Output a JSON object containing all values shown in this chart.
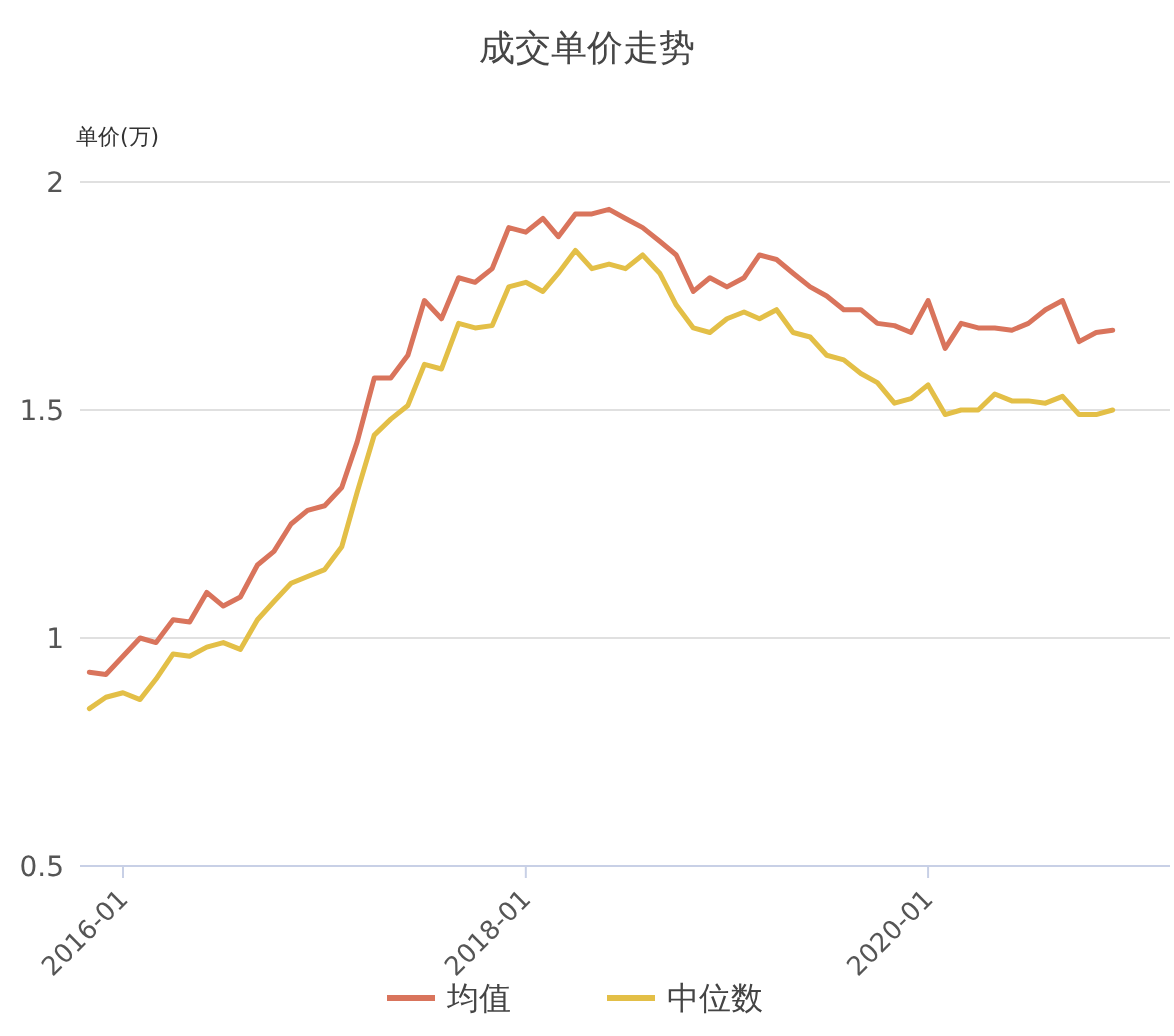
{
  "chart_data": {
    "type": "line",
    "title": "成交单价走势",
    "ylabel": "单价(万)",
    "x": [
      "2015-11",
      "2015-12",
      "2016-01",
      "2016-02",
      "2016-03",
      "2016-04",
      "2016-05",
      "2016-06",
      "2016-07",
      "2016-08",
      "2016-09",
      "2016-10",
      "2016-11",
      "2016-12",
      "2017-01",
      "2017-02",
      "2017-03",
      "2017-04",
      "2017-05",
      "2017-06",
      "2017-07",
      "2017-08",
      "2017-09",
      "2017-10",
      "2017-11",
      "2017-12",
      "2018-01",
      "2018-02",
      "2018-03",
      "2018-04",
      "2018-05",
      "2018-06",
      "2018-07",
      "2018-08",
      "2018-09",
      "2018-10",
      "2018-11",
      "2018-12",
      "2019-01",
      "2019-02",
      "2019-03",
      "2019-04",
      "2019-05",
      "2019-06",
      "2019-07",
      "2019-08",
      "2019-09",
      "2019-10",
      "2019-11",
      "2019-12",
      "2020-01",
      "2020-02",
      "2020-03",
      "2020-04",
      "2020-05",
      "2020-06",
      "2020-07",
      "2020-08",
      "2020-09",
      "2020-10",
      "2020-11",
      "2020-12"
    ],
    "series": [
      {
        "name": "均值",
        "color": "#d9745c",
        "values": [
          0.925,
          0.92,
          0.96,
          1.0,
          0.99,
          1.04,
          1.035,
          1.1,
          1.07,
          1.09,
          1.16,
          1.19,
          1.25,
          1.28,
          1.29,
          1.33,
          1.43,
          1.57,
          1.57,
          1.62,
          1.74,
          1.7,
          1.79,
          1.78,
          1.81,
          1.9,
          1.89,
          1.92,
          1.88,
          1.93,
          1.93,
          1.94,
          1.92,
          1.9,
          1.87,
          1.84,
          1.76,
          1.79,
          1.77,
          1.79,
          1.84,
          1.83,
          1.8,
          1.77,
          1.75,
          1.72,
          1.72,
          1.69,
          1.685,
          1.67,
          1.74,
          1.635,
          1.69,
          1.68,
          1.68,
          1.675,
          1.69,
          1.72,
          1.74,
          1.65,
          1.67,
          1.675
        ]
      },
      {
        "name": "中位数",
        "color": "#e3bf47",
        "values": [
          0.845,
          0.87,
          0.88,
          0.865,
          0.91,
          0.965,
          0.96,
          0.98,
          0.99,
          0.975,
          1.04,
          1.08,
          1.12,
          1.135,
          1.15,
          1.2,
          1.32,
          1.445,
          1.48,
          1.51,
          1.6,
          1.59,
          1.69,
          1.68,
          1.685,
          1.77,
          1.78,
          1.76,
          1.8,
          1.85,
          1.81,
          1.82,
          1.81,
          1.84,
          1.8,
          1.73,
          1.68,
          1.67,
          1.7,
          1.715,
          1.7,
          1.72,
          1.67,
          1.66,
          1.62,
          1.61,
          1.58,
          1.56,
          1.515,
          1.525,
          1.555,
          1.49,
          1.5,
          1.5,
          1.535,
          1.52,
          1.52,
          1.515,
          1.53,
          1.49,
          1.49,
          1.5
        ]
      }
    ],
    "xlim": [
      "2015-10-15",
      "2021-03-15"
    ],
    "xticks": [
      "2016-01",
      "2018-01",
      "2020-01"
    ],
    "ylim": [
      0.5,
      2
    ],
    "yticks": [
      0.5,
      1,
      1.5,
      2
    ],
    "grid": "y",
    "legend": "bottom",
    "line_style": "solid",
    "marker": "none"
  }
}
